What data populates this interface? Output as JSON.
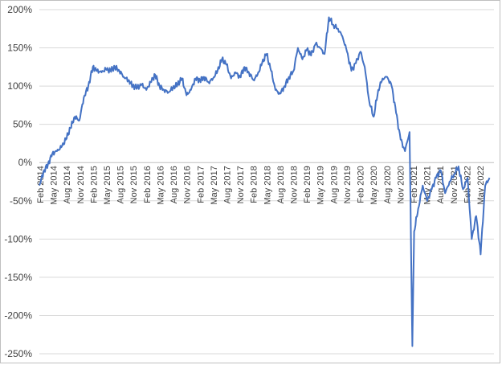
{
  "chart_data": {
    "type": "line",
    "title": "",
    "xlabel": "",
    "ylabel": "",
    "ylim": [
      -250,
      200
    ],
    "yticks": [
      200,
      150,
      100,
      50,
      0,
      -50,
      -100,
      -150,
      -200,
      -250
    ],
    "ytick_labels": [
      "200%",
      "150%",
      "100%",
      "50%",
      "0%",
      "-50%",
      "-100%",
      "-150%",
      "-200%",
      "-250%"
    ],
    "xlim": [
      "2014-02-01",
      "2022-07-31"
    ],
    "xtick_labels": [
      "Feb 2014",
      "May 2014",
      "Aug 2014",
      "Nov 2014",
      "Feb 2015",
      "May 2015",
      "Aug 2015",
      "Nov 2015",
      "Feb 2016",
      "May 2016",
      "Aug 2016",
      "Nov 2016",
      "Feb 2017",
      "May 2017",
      "Aug 2017",
      "Nov 2017",
      "Feb 2018",
      "May 2018",
      "Aug 2018",
      "Nov 2018",
      "Feb 2019",
      "May 2019",
      "Aug 2019",
      "Nov 2019",
      "Feb 2020",
      "May 2020",
      "Aug 2020",
      "Nov 2020",
      "Feb 2021",
      "May 2021",
      "Aug 2021",
      "Nov 2021",
      "Feb 2022",
      "May 2022"
    ],
    "grid": true,
    "legend": "none",
    "series_color": "#4472c4",
    "series": [
      {
        "x": [
          "2014-02-01",
          "2014-03-01",
          "2014-04-01",
          "2014-05-01",
          "2014-06-01",
          "2014-07-01",
          "2014-08-01",
          "2014-09-01",
          "2014-10-01",
          "2014-11-01",
          "2014-12-01",
          "2015-01-01",
          "2015-02-01",
          "2015-03-01",
          "2015-04-01",
          "2015-05-01",
          "2015-06-01",
          "2015-07-01",
          "2015-08-01",
          "2015-09-01",
          "2015-10-01",
          "2015-11-01",
          "2015-12-01",
          "2016-01-01",
          "2016-02-01",
          "2016-03-01",
          "2016-04-01",
          "2016-05-01",
          "2016-06-01",
          "2016-07-01",
          "2016-08-01",
          "2016-09-01",
          "2016-10-01",
          "2016-11-01",
          "2016-12-01",
          "2017-01-01",
          "2017-02-01",
          "2017-03-01",
          "2017-04-01",
          "2017-05-01",
          "2017-06-01",
          "2017-07-01",
          "2017-08-01",
          "2017-09-01",
          "2017-10-01",
          "2017-11-01",
          "2017-12-01",
          "2018-01-01",
          "2018-02-01",
          "2018-03-01",
          "2018-04-01",
          "2018-05-01",
          "2018-06-01",
          "2018-07-01",
          "2018-08-01",
          "2018-09-01",
          "2018-10-01",
          "2018-11-01",
          "2018-12-01",
          "2019-01-01",
          "2019-02-01",
          "2019-03-01",
          "2019-04-01",
          "2019-05-01",
          "2019-06-01",
          "2019-07-01",
          "2019-08-01",
          "2019-09-01",
          "2019-10-01",
          "2019-11-01",
          "2019-12-01",
          "2020-01-01",
          "2020-02-01",
          "2020-03-01",
          "2020-04-01",
          "2020-05-01",
          "2020-06-01",
          "2020-07-01",
          "2020-08-01",
          "2020-09-01",
          "2020-10-01",
          "2020-11-01",
          "2020-12-01",
          "2021-01-01",
          "2021-01-20",
          "2021-02-01",
          "2021-03-01",
          "2021-04-01",
          "2021-05-01",
          "2021-06-01",
          "2021-07-01",
          "2021-08-01",
          "2021-09-01",
          "2021-10-01",
          "2021-11-01",
          "2021-12-01",
          "2022-01-01",
          "2022-02-01",
          "2022-03-01",
          "2022-04-01",
          "2022-05-01",
          "2022-06-01",
          "2022-07-01"
        ],
        "y": [
          -30,
          -12,
          -2,
          12,
          15,
          20,
          30,
          45,
          60,
          55,
          85,
          100,
          125,
          120,
          118,
          122,
          120,
          125,
          120,
          112,
          108,
          100,
          98,
          102,
          95,
          105,
          115,
          100,
          95,
          92,
          98,
          102,
          110,
          88,
          95,
          110,
          108,
          112,
          105,
          110,
          120,
          135,
          128,
          110,
          118,
          112,
          125,
          118,
          108,
          115,
          130,
          142,
          120,
          95,
          90,
          100,
          112,
          120,
          150,
          135,
          148,
          140,
          155,
          150,
          142,
          190,
          180,
          175,
          165,
          145,
          120,
          130,
          145,
          125,
          80,
          60,
          95,
          110,
          112,
          100,
          65,
          30,
          15,
          40,
          -240,
          -90,
          -60,
          -30,
          -50,
          -35,
          -20,
          -10,
          -40,
          -25,
          -15,
          -5,
          -35,
          -20,
          -100,
          -70,
          -120,
          -30,
          -20
        ]
      }
    ]
  }
}
